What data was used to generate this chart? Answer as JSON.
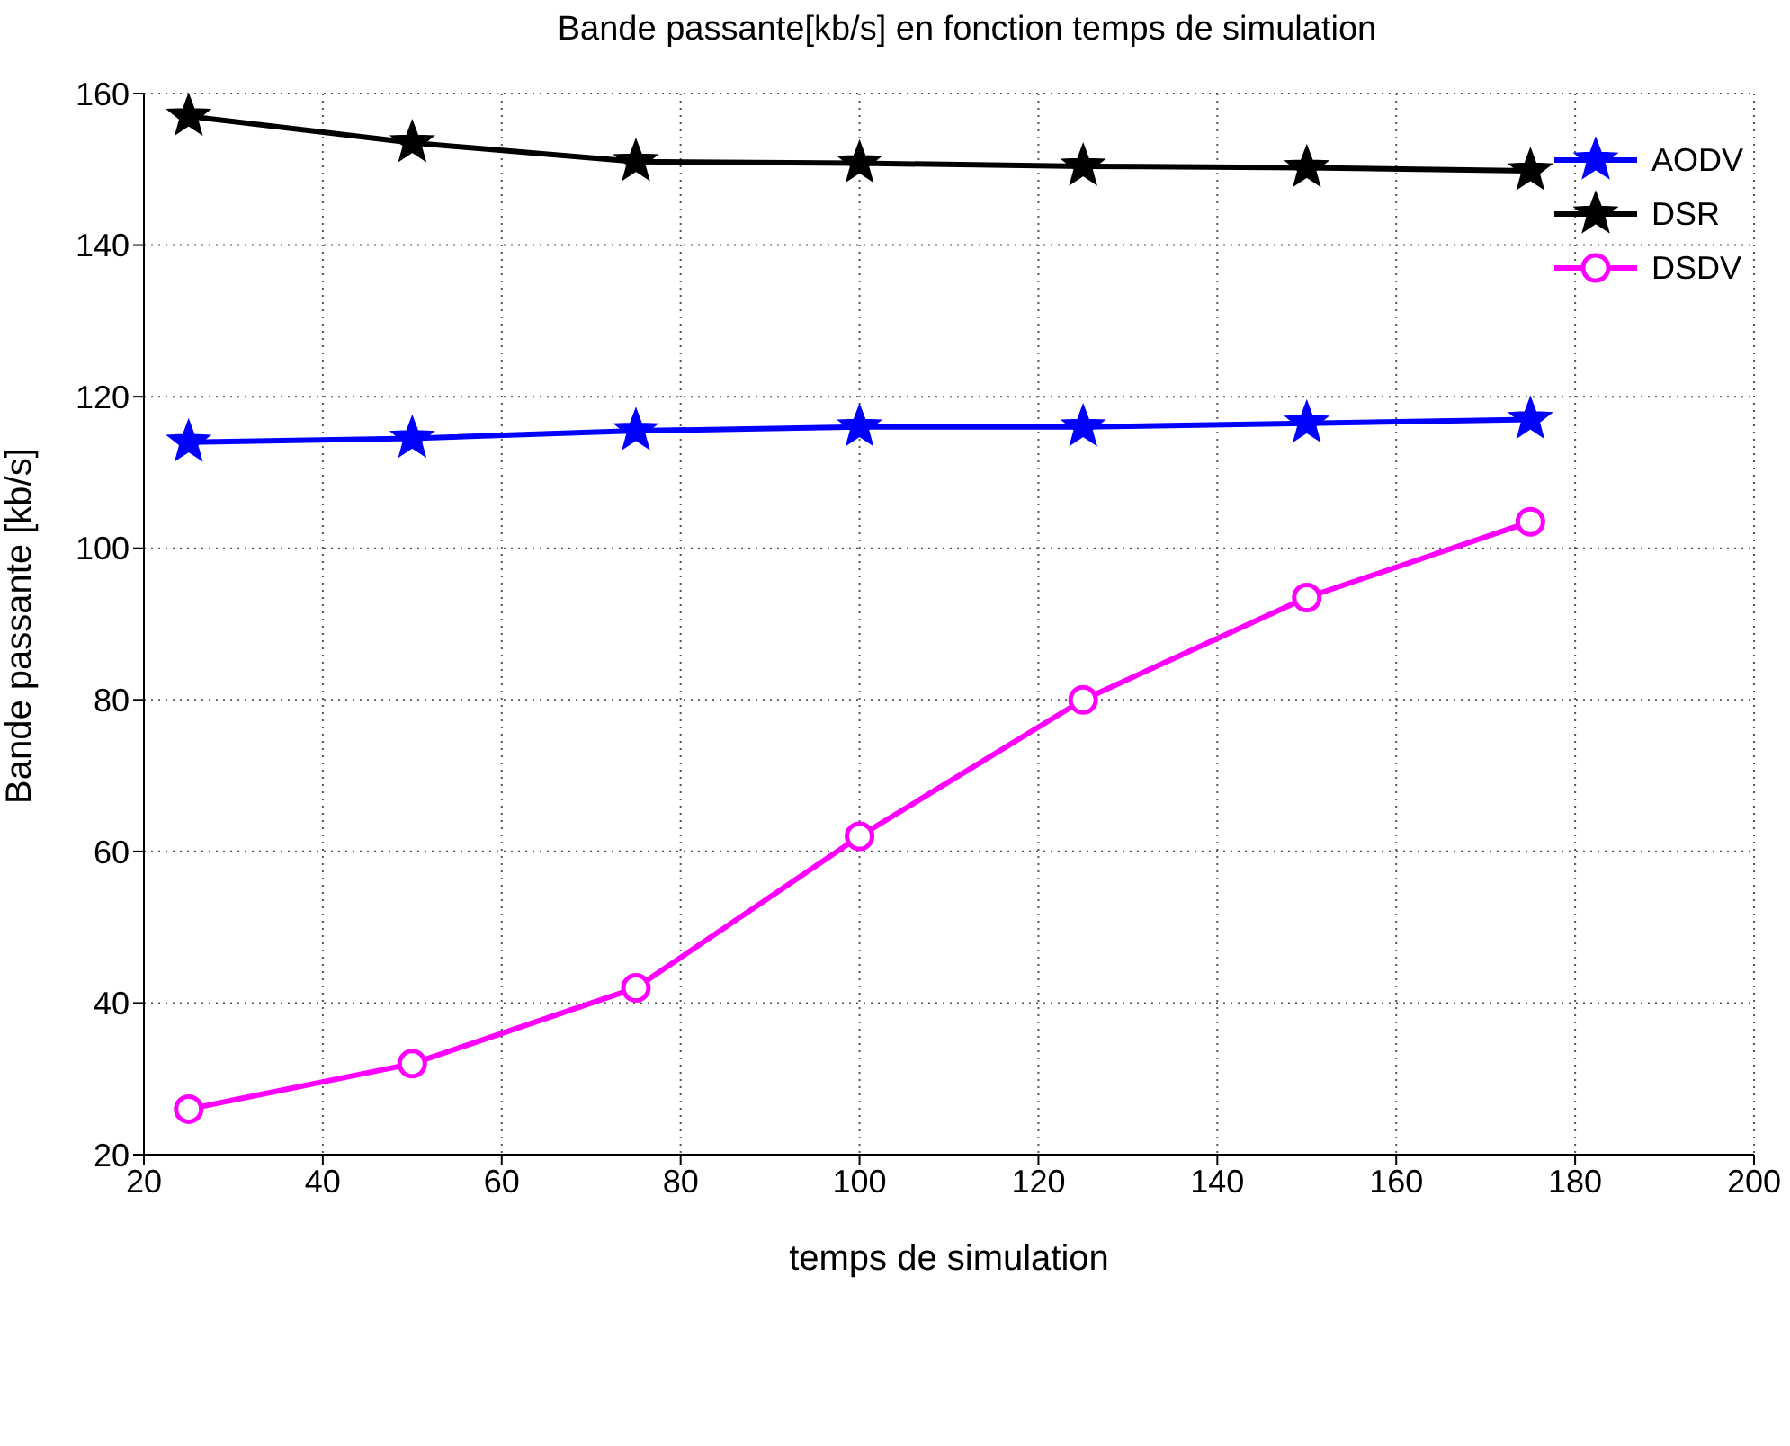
{
  "chart_data": {
    "type": "line",
    "title": "Bande passante[kb/s] en fonction temps de simulation",
    "xlabel": "temps de simulation",
    "ylabel": "Bande passante [kb/s]",
    "x": [
      25,
      50,
      75,
      100,
      125,
      150,
      175
    ],
    "series": [
      {
        "name": "AODV",
        "color": "#0000ff",
        "marker": "star",
        "values": [
          114,
          114.5,
          115.5,
          116,
          116,
          116.5,
          117
        ]
      },
      {
        "name": "DSR",
        "color": "#000000",
        "marker": "star",
        "values": [
          157,
          153.5,
          151,
          150.8,
          150.4,
          150.2,
          149.8
        ]
      },
      {
        "name": "DSDV",
        "color": "#ff00ff",
        "marker": "circle",
        "values": [
          26,
          32,
          42,
          62,
          80,
          93.5,
          103.5
        ]
      }
    ],
    "xlim": [
      20,
      200
    ],
    "xticks": [
      20,
      40,
      60,
      80,
      100,
      120,
      140,
      160,
      180,
      200
    ],
    "ylim": [
      20,
      160
    ],
    "yticks": [
      20,
      40,
      60,
      80,
      100,
      120,
      140,
      160
    ],
    "grid": true,
    "legend": "top right",
    "line_style": "solid"
  }
}
